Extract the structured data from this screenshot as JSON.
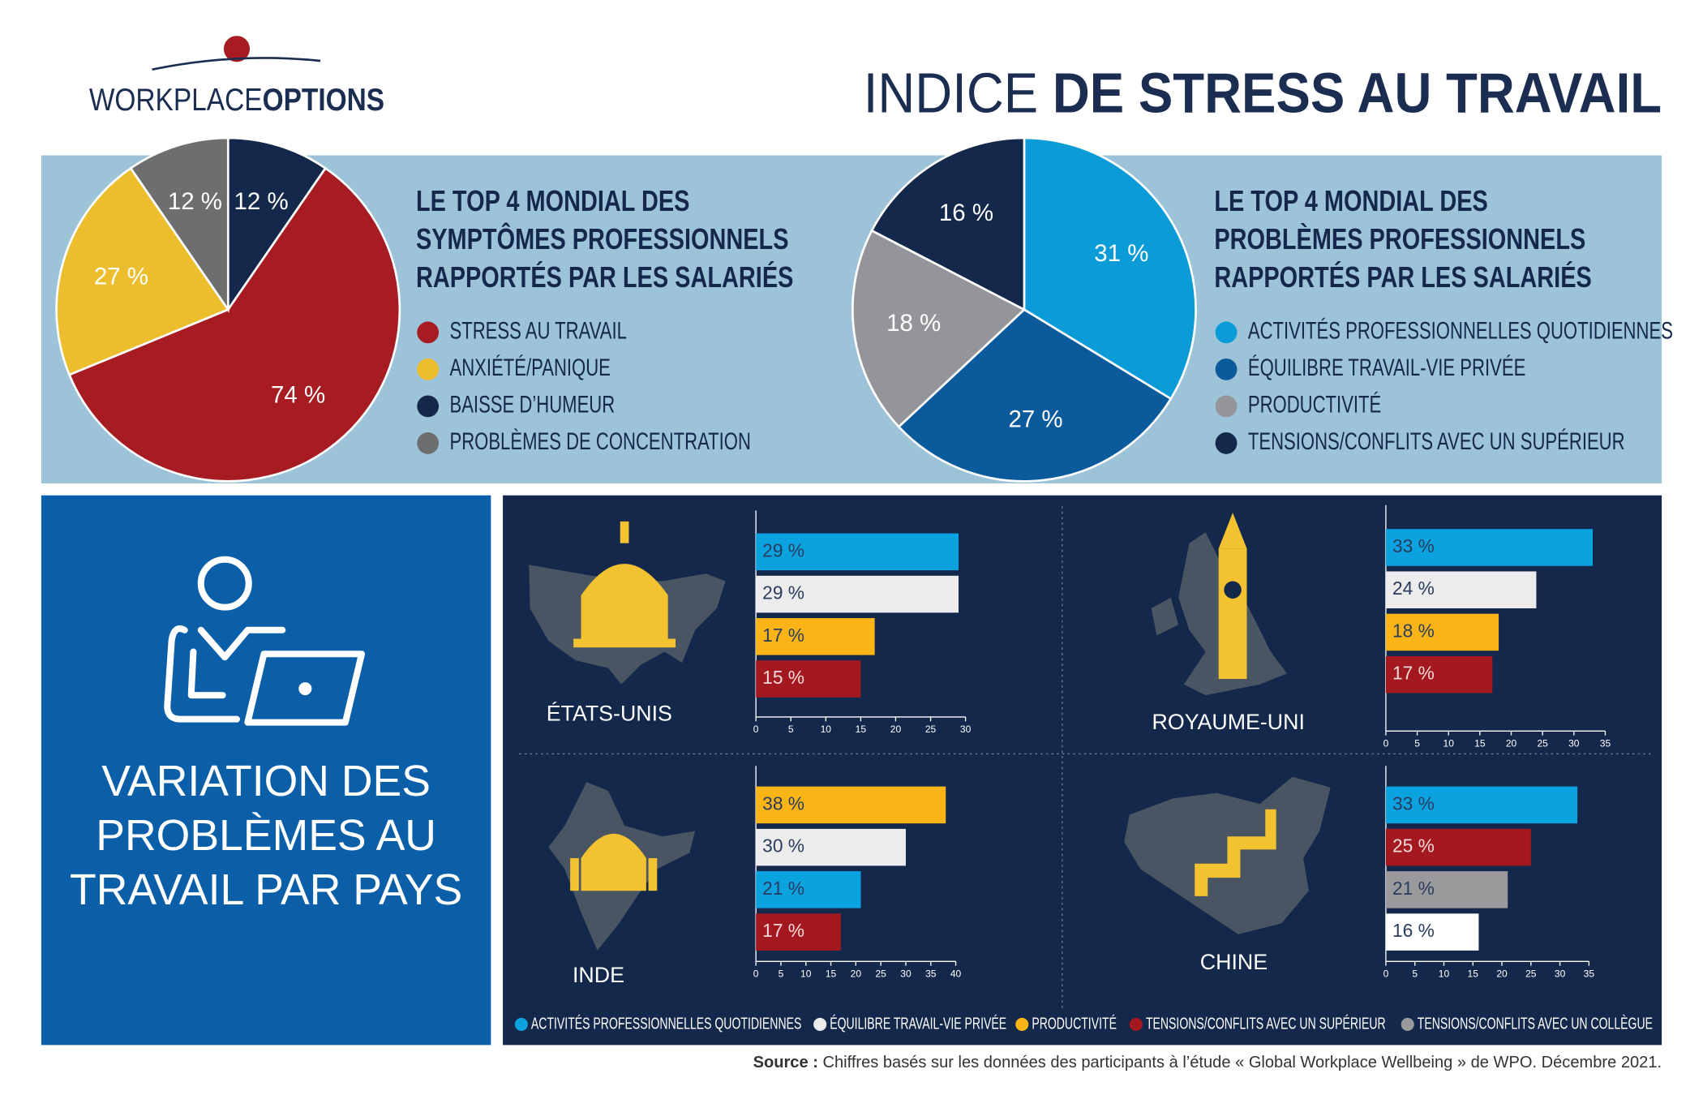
{
  "logo": {
    "light": "WORKPLACE",
    "bold": "OPTIONS"
  },
  "title": {
    "light": "INDICE",
    "bold": "DE STRESS AU TRAVAIL"
  },
  "section_title": [
    "VARIATION DES",
    "PROBLÈMES AU",
    "TRAVAIL PAR PAYS"
  ],
  "legend": [
    {
      "name": "ACTIVITÉS PROFESSIONNELLES QUOTIDIENNES",
      "color": "#0aa3e0"
    },
    {
      "name": "ÉQUILIBRE TRAVAIL-VIE PRIVÉE",
      "color": "#ececec"
    },
    {
      "name": "PRODUCTIVITÉ",
      "color": "#fbb415"
    },
    {
      "name": "TENSIONS/CONFLITS AVEC UN SUPÉRIEUR",
      "color": "#a3191f"
    },
    {
      "name": "TENSIONS/CONFLITS AVEC UN COLLÈGUE",
      "color": "#9a9a9c"
    }
  ],
  "source": {
    "label": "Source :",
    "text": "Chiffres basés sur les données des participants à l’étude « Global Workplace Wellbeing » de WPO. Décembre 2021."
  },
  "chart_data": [
    {
      "type": "pie",
      "title": [
        "LE TOP 4 MONDIAL DES",
        "SYMPTÔMES PROFESSIONNELS",
        "RAPPORTÉS PAR LES SALARIÉS"
      ],
      "values": [
        12,
        74,
        27,
        12
      ],
      "value_labels": [
        "12 %",
        "74 %",
        "27 %",
        "12 %"
      ],
      "colors": [
        "#14284b",
        "#a71c22",
        "#ecbd2d",
        "#6d6e70"
      ],
      "legend": [
        {
          "name": "STRESS AU TRAVAIL",
          "color": "#a71c22"
        },
        {
          "name": "ANXIÉTÉ/PANIQUE",
          "color": "#ecbd2d"
        },
        {
          "name": "BAISSE D’HUMEUR",
          "color": "#14284b"
        },
        {
          "name": "PROBLÈMES DE CONCENTRATION",
          "color": "#6d6e70"
        }
      ]
    },
    {
      "type": "pie",
      "title": [
        "LE TOP 4 MONDIAL DES",
        "PROBLÈMES PROFESSIONNELS",
        "RAPPORTÉS PAR LES SALARIÉS"
      ],
      "values": [
        31,
        27,
        18,
        16
      ],
      "value_labels": [
        "31 %",
        "27 %",
        "18 %",
        "16 %"
      ],
      "colors": [
        "#0b9bd6",
        "#0a5a9c",
        "#939598",
        "#14284b"
      ],
      "legend": [
        {
          "name": "ACTIVITÉS PROFESSIONNELLES QUOTIDIENNES",
          "color": "#0b9bd6"
        },
        {
          "name": "ÉQUILIBRE TRAVAIL-VIE PRIVÉE",
          "color": "#0a5a9c"
        },
        {
          "name": "PRODUCTIVITÉ",
          "color": "#939598"
        },
        {
          "name": "TENSIONS/CONFLITS AVEC UN SUPÉRIEUR",
          "color": "#14284b"
        }
      ]
    },
    {
      "type": "bar",
      "orientation": "horizontal",
      "title": "ÉTATS-UNIS",
      "values": [
        29,
        29,
        17,
        15
      ],
      "value_labels": [
        "29 %",
        "29 %",
        "17 %",
        "15 %"
      ],
      "colors": [
        "#0aa3e0",
        "#ececec",
        "#fbb415",
        "#a3191f"
      ],
      "xlim": [
        0,
        30
      ],
      "xticks": [
        0,
        5,
        10,
        15,
        20,
        25,
        30
      ]
    },
    {
      "type": "bar",
      "orientation": "horizontal",
      "title": "ROYAUME-UNI",
      "values": [
        33,
        24,
        18,
        17
      ],
      "value_labels": [
        "33 %",
        "24 %",
        "18 %",
        "17 %"
      ],
      "colors": [
        "#0aa3e0",
        "#ececec",
        "#fbb415",
        "#a3191f"
      ],
      "xlim": [
        0,
        35
      ],
      "xticks": [
        0,
        5,
        10,
        15,
        20,
        25,
        30,
        35
      ]
    },
    {
      "type": "bar",
      "orientation": "horizontal",
      "title": "INDE",
      "values": [
        38,
        30,
        21,
        17
      ],
      "value_labels": [
        "38 %",
        "30 %",
        "21 %",
        "17 %"
      ],
      "colors": [
        "#fbb415",
        "#ececec",
        "#0aa3e0",
        "#a3191f"
      ],
      "xlim": [
        0,
        40
      ],
      "xticks": [
        0,
        5,
        10,
        15,
        20,
        25,
        30,
        35,
        40
      ]
    },
    {
      "type": "bar",
      "orientation": "horizontal",
      "title": "CHINE",
      "values": [
        33,
        25,
        21,
        16
      ],
      "value_labels": [
        "33 %",
        "25 %",
        "21 %",
        "16 %"
      ],
      "colors": [
        "#0aa3e0",
        "#a3191f",
        "#9a9a9c",
        "#ffffff"
      ],
      "xlim": [
        0,
        35
      ],
      "xticks": [
        0,
        5,
        10,
        15,
        20,
        25,
        30,
        35
      ]
    }
  ]
}
